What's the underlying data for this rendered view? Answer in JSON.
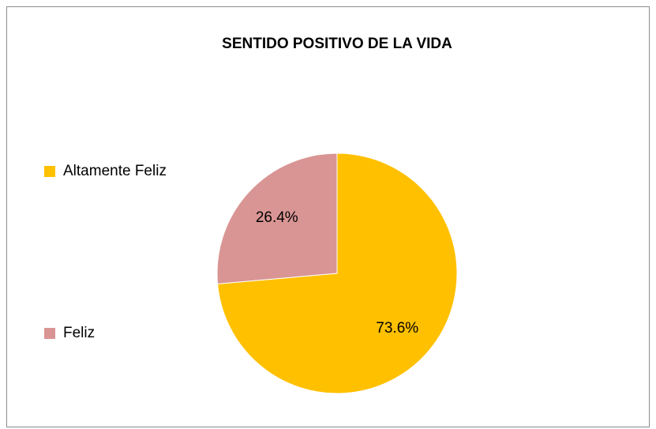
{
  "chart_data": {
    "type": "pie",
    "title": "SENTIDO POSITIVO DE LA VIDA",
    "categories": [
      "Altamente Feliz",
      "Feliz"
    ],
    "values": [
      73.6,
      26.4
    ],
    "value_labels": [
      "73.6%",
      "26.4%"
    ],
    "colors": [
      "#FFC000",
      "#D99594"
    ],
    "legend": "left"
  }
}
